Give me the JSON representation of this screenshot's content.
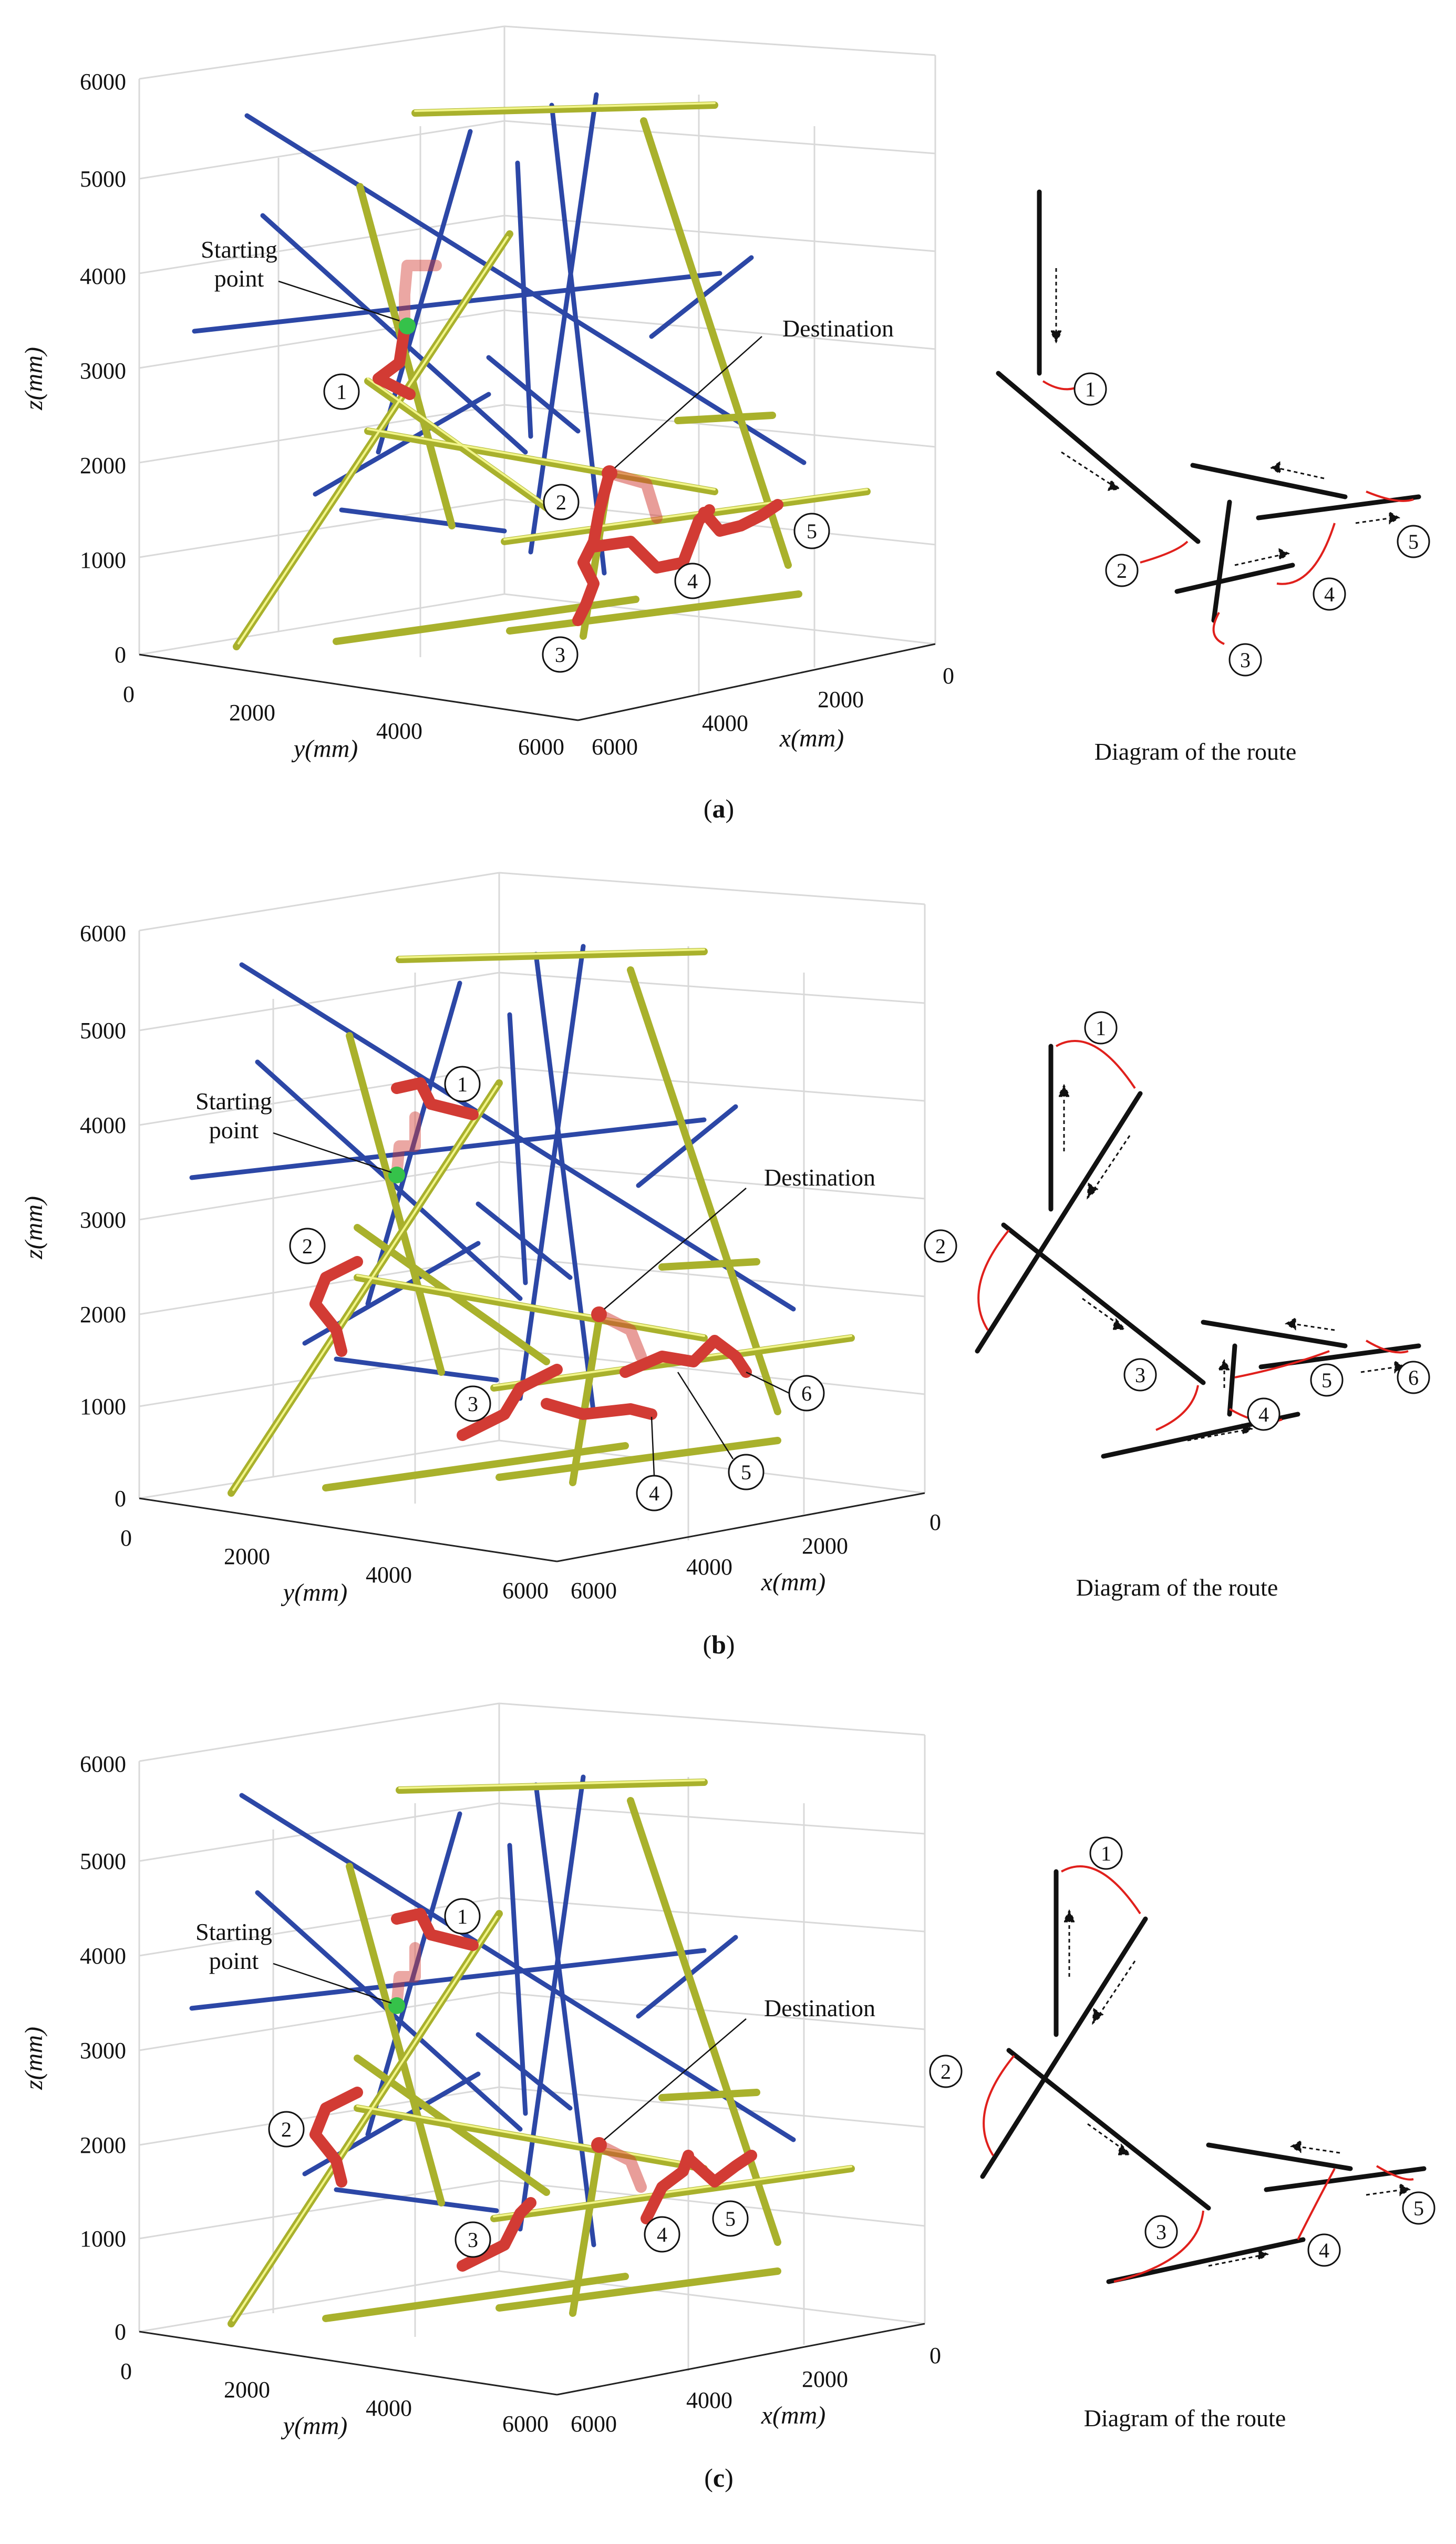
{
  "panels": [
    {
      "id": "a",
      "caption_letter": "a",
      "starting_label": [
        "Starting",
        "point"
      ],
      "destination_label": "Destination",
      "diagram_caption": "Diagram of the route",
      "route_markers": [
        "1",
        "2",
        "3",
        "4",
        "5"
      ],
      "diagram_markers": [
        "1",
        "2",
        "3",
        "4",
        "5"
      ],
      "axes": {
        "z_ticks": [
          "0",
          "1000",
          "2000",
          "3000",
          "4000",
          "5000",
          "6000"
        ],
        "y_ticks": [
          "0",
          "2000",
          "4000",
          "6000"
        ],
        "x_ticks": [
          "6000",
          "4000",
          "2000",
          "0"
        ],
        "z_label": "z(mm)",
        "y_label": "y(mm)",
        "x_label": "x(mm)"
      }
    },
    {
      "id": "b",
      "caption_letter": "b",
      "starting_label": [
        "Starting",
        "point"
      ],
      "destination_label": "Destination",
      "diagram_caption": "Diagram of the route",
      "route_markers": [
        "1",
        "2",
        "3",
        "4",
        "5",
        "6"
      ],
      "diagram_markers": [
        "1",
        "2",
        "3",
        "4",
        "5",
        "6"
      ],
      "axes": {
        "z_ticks": [
          "0",
          "1000",
          "2000",
          "3000",
          "4000",
          "5000",
          "6000"
        ],
        "y_ticks": [
          "0",
          "2000",
          "4000",
          "6000"
        ],
        "x_ticks": [
          "6000",
          "4000",
          "2000",
          "0"
        ],
        "z_label": "z(mm)",
        "y_label": "y(mm)",
        "x_label": "x(mm)"
      }
    },
    {
      "id": "c",
      "caption_letter": "c",
      "starting_label": [
        "Starting",
        "point"
      ],
      "destination_label": "Destination",
      "diagram_caption": "Diagram of the route",
      "route_markers": [
        "1",
        "2",
        "3",
        "4",
        "5"
      ],
      "diagram_markers": [
        "1",
        "2",
        "3",
        "4",
        "5"
      ],
      "axes": {
        "z_ticks": [
          "0",
          "1000",
          "2000",
          "3000",
          "4000",
          "5000",
          "6000"
        ],
        "y_ticks": [
          "0",
          "2000",
          "4000",
          "6000"
        ],
        "x_ticks": [
          "6000",
          "4000",
          "2000",
          "0"
        ],
        "z_label": "z(mm)",
        "y_label": "y(mm)",
        "x_label": "x(mm)"
      }
    }
  ],
  "colors": {
    "blue_pole": "#2c47a6",
    "yellow_pole": "#c8cf3a",
    "route": "#d23b34",
    "start": "#35c24a",
    "arrow_red": "#e0201c",
    "grid": "#d9d9d9"
  }
}
